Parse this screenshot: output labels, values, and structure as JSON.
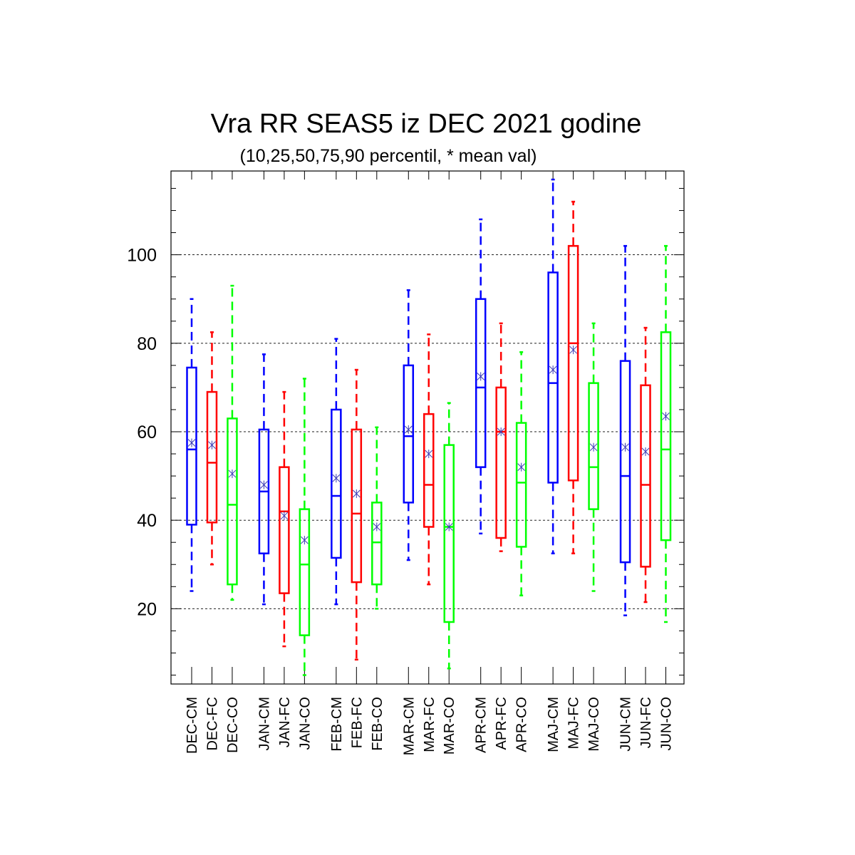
{
  "chart_data": {
    "type": "boxplot",
    "title": "Vra RR SEAS5 iz DEC 2021 godine",
    "subtitle": "(10,25,50,75,90 percentil, * mean val)",
    "ylim": [
      3,
      118
    ],
    "yticks": [
      20,
      40,
      60,
      80,
      100
    ],
    "yminor_step": 5,
    "grid": "horizontal dashed at major ticks",
    "colors": {
      "CM": "#0000ff",
      "FC": "#ff0000",
      "CO": "#00ff00",
      "mean_marker": "#3c3cb4"
    },
    "boxes": [
      {
        "label": "DEC-CM",
        "type": "CM",
        "p10": 24,
        "p25": 39,
        "p50": 56,
        "p75": 74.5,
        "p90": 90,
        "mean": 57.5
      },
      {
        "label": "DEC-FC",
        "type": "FC",
        "p10": 30,
        "p25": 39.5,
        "p50": 53,
        "p75": 69,
        "p90": 82.5,
        "mean": 57
      },
      {
        "label": "DEC-CO",
        "type": "CO",
        "p10": 22,
        "p25": 25.5,
        "p50": 43.5,
        "p75": 63,
        "p90": 93,
        "mean": 50.5
      },
      {
        "label": "JAN-CM",
        "type": "CM",
        "p10": 21,
        "p25": 32.5,
        "p50": 46.5,
        "p75": 60.5,
        "p90": 77.5,
        "mean": 48
      },
      {
        "label": "JAN-FC",
        "type": "FC",
        "p10": 11.5,
        "p25": 23.5,
        "p50": 42,
        "p75": 52,
        "p90": 69,
        "mean": 41
      },
      {
        "label": "JAN-CO",
        "type": "CO",
        "p10": 5,
        "p25": 14,
        "p50": 30,
        "p75": 42.5,
        "p90": 72,
        "mean": 35.5
      },
      {
        "label": "FEB-CM",
        "type": "CM",
        "p10": 21,
        "p25": 31.5,
        "p50": 45.5,
        "p75": 65,
        "p90": 81,
        "mean": 49.5
      },
      {
        "label": "FEB-FC",
        "type": "FC",
        "p10": 8.5,
        "p25": 26,
        "p50": 41.5,
        "p75": 60.5,
        "p90": 74,
        "mean": 46
      },
      {
        "label": "FEB-CO",
        "type": "CO",
        "p10": 20,
        "p25": 25.5,
        "p50": 35,
        "p75": 44,
        "p90": 61,
        "mean": 38.5
      },
      {
        "label": "MAR-CM",
        "type": "CM",
        "p10": 31,
        "p25": 44,
        "p50": 59,
        "p75": 75,
        "p90": 92,
        "mean": 60.5
      },
      {
        "label": "MAR-FC",
        "type": "FC",
        "p10": 25.5,
        "p25": 38.5,
        "p50": 48,
        "p75": 64,
        "p90": 82,
        "mean": 55
      },
      {
        "label": "MAR-CO",
        "type": "CO",
        "p10": 6.5,
        "p25": 17,
        "p50": 38.5,
        "p75": 57,
        "p90": 66.5,
        "mean": 38.5
      },
      {
        "label": "APR-CM",
        "type": "CM",
        "p10": 37,
        "p25": 52,
        "p50": 70,
        "p75": 90,
        "p90": 108,
        "mean": 72.5
      },
      {
        "label": "APR-FC",
        "type": "FC",
        "p10": 33,
        "p25": 36,
        "p50": 60,
        "p75": 70,
        "p90": 84.5,
        "mean": 60
      },
      {
        "label": "APR-CO",
        "type": "CO",
        "p10": 23,
        "p25": 34,
        "p50": 48.5,
        "p75": 62,
        "p90": 78,
        "mean": 52
      },
      {
        "label": "MAJ-CM",
        "type": "CM",
        "p10": 32.5,
        "p25": 48.5,
        "p50": 71,
        "p75": 96,
        "p90": 117,
        "mean": 74
      },
      {
        "label": "MAJ-FC",
        "type": "FC",
        "p10": 32.5,
        "p25": 49,
        "p50": 80,
        "p75": 102,
        "p90": 112,
        "mean": 78.5
      },
      {
        "label": "MAJ-CO",
        "type": "CO",
        "p10": 24,
        "p25": 42.5,
        "p50": 52,
        "p75": 71,
        "p90": 84.5,
        "mean": 56.5
      },
      {
        "label": "JUN-CM",
        "type": "CM",
        "p10": 18.5,
        "p25": 30.5,
        "p50": 50,
        "p75": 76,
        "p90": 102,
        "mean": 56.5
      },
      {
        "label": "JUN-FC",
        "type": "FC",
        "p10": 21.5,
        "p25": 29.5,
        "p50": 48,
        "p75": 70.5,
        "p90": 83.5,
        "mean": 55.5
      },
      {
        "label": "JUN-CO",
        "type": "CO",
        "p10": 17,
        "p25": 35.5,
        "p50": 56,
        "p75": 82.5,
        "p90": 102,
        "mean": 63.5
      }
    ]
  }
}
